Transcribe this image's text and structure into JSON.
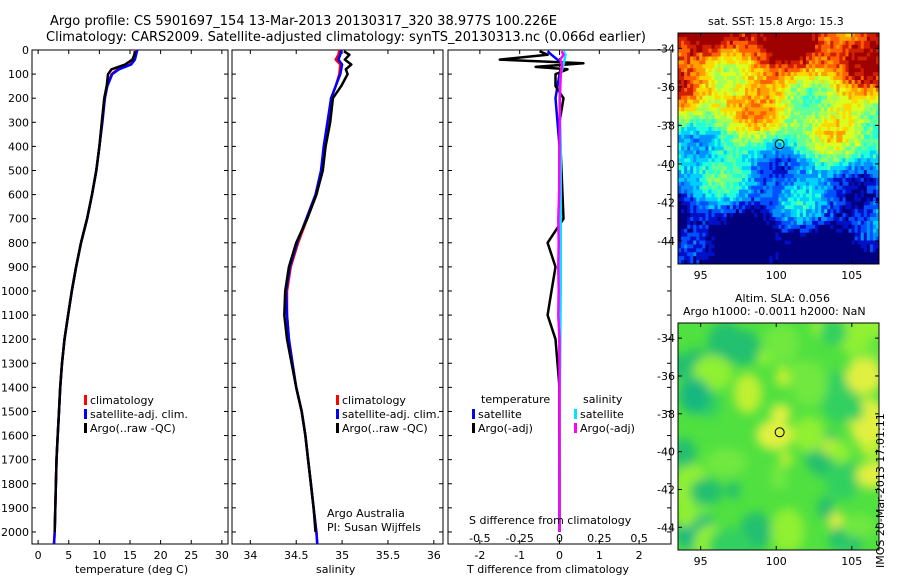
{
  "title_line1": "Argo profile: CS 5901697_154 13-Mar-2013 20130317_320 38.977S 100.226E",
  "title_line2": "Climatology: CARS2009. Satellite-adjusted climatology: synTS_20130313.nc (0.066d earlier)",
  "credit_line1": "Argo Australia",
  "credit_line2": "PI: Susan Wijffels",
  "stamp": "IMOS 20-Mar-2013 17:01:11",
  "chart_data": [
    {
      "id": "temperature",
      "type": "line",
      "xlabel": "temperature (deg C)",
      "xlim": [
        -1,
        31
      ],
      "xticks": [
        0,
        5,
        10,
        15,
        20,
        25,
        30
      ],
      "ylim": [
        0,
        2050
      ],
      "yticks": [
        0,
        100,
        200,
        300,
        400,
        500,
        600,
        700,
        800,
        900,
        1000,
        1100,
        1200,
        1300,
        1400,
        1500,
        1600,
        1700,
        1800,
        1900,
        2000
      ],
      "legend": [
        "climatology",
        "satellite-adj. clim.",
        "Argo(..raw -QC)"
      ],
      "series": [
        {
          "name": "climatology",
          "color": "#ff0000",
          "points": [
            [
              16.0,
              0
            ],
            [
              15.8,
              20
            ],
            [
              15.6,
              40
            ],
            [
              15.0,
              60
            ],
            [
              13.0,
              80
            ],
            [
              12.0,
              100
            ],
            [
              11.2,
              150
            ],
            [
              10.8,
              200
            ],
            [
              10.4,
              300
            ],
            [
              10.0,
              400
            ],
            [
              9.5,
              500
            ],
            [
              8.8,
              600
            ],
            [
              8.0,
              700
            ],
            [
              7.0,
              800
            ],
            [
              6.2,
              900
            ],
            [
              5.5,
              1000
            ],
            [
              4.9,
              1100
            ],
            [
              4.3,
              1200
            ],
            [
              3.9,
              1300
            ],
            [
              3.6,
              1400
            ],
            [
              3.4,
              1500
            ],
            [
              3.2,
              1600
            ],
            [
              3.0,
              1700
            ],
            [
              2.9,
              1800
            ],
            [
              2.8,
              1900
            ],
            [
              2.7,
              2000
            ],
            [
              2.6,
              2050
            ]
          ]
        },
        {
          "name": "satellite-adj. clim.",
          "color": "#0000ff",
          "points": [
            [
              16.2,
              0
            ],
            [
              16.0,
              20
            ],
            [
              15.8,
              40
            ],
            [
              15.2,
              60
            ],
            [
              13.2,
              80
            ],
            [
              12.1,
              100
            ],
            [
              11.3,
              150
            ],
            [
              10.9,
              200
            ],
            [
              10.5,
              300
            ],
            [
              10.0,
              400
            ],
            [
              9.5,
              500
            ],
            [
              8.8,
              600
            ],
            [
              8.0,
              700
            ],
            [
              7.0,
              800
            ],
            [
              6.2,
              900
            ],
            [
              5.5,
              1000
            ],
            [
              4.9,
              1100
            ],
            [
              4.3,
              1200
            ],
            [
              3.9,
              1300
            ],
            [
              3.6,
              1400
            ],
            [
              3.4,
              1500
            ],
            [
              3.2,
              1600
            ],
            [
              3.0,
              1700
            ],
            [
              2.9,
              1800
            ],
            [
              2.8,
              1900
            ],
            [
              2.7,
              2000
            ],
            [
              2.6,
              2050
            ]
          ]
        },
        {
          "name": "Argo(..raw -QC)",
          "color": "#000000",
          "points": [
            [
              15.8,
              5
            ],
            [
              15.7,
              20
            ],
            [
              15.4,
              40
            ],
            [
              14.2,
              60
            ],
            [
              12.0,
              80
            ],
            [
              11.4,
              100
            ],
            [
              11.2,
              150
            ],
            [
              10.8,
              200
            ],
            [
              10.4,
              300
            ],
            [
              10.0,
              400
            ],
            [
              9.5,
              500
            ],
            [
              8.8,
              600
            ],
            [
              8.0,
              700
            ],
            [
              7.0,
              800
            ],
            [
              6.2,
              900
            ],
            [
              5.5,
              1000
            ],
            [
              4.9,
              1100
            ],
            [
              4.3,
              1200
            ],
            [
              3.9,
              1300
            ],
            [
              3.6,
              1400
            ],
            [
              3.4,
              1500
            ],
            [
              3.2,
              1600
            ],
            [
              3.0,
              1700
            ],
            [
              2.9,
              1800
            ],
            [
              2.8,
              1900
            ],
            [
              2.7,
              2000
            ]
          ]
        }
      ]
    },
    {
      "id": "salinity",
      "type": "line",
      "xlabel": "salinity",
      "xlim": [
        33.8,
        36.1
      ],
      "xticks": [
        34,
        34.5,
        35,
        35.5,
        36
      ],
      "ylim": [
        0,
        2050
      ],
      "legend": [
        "climatology",
        "satellite-adj. clim.",
        "Argo(..raw -QC)"
      ],
      "series": [
        {
          "name": "climatology",
          "color": "#ff0000",
          "points": [
            [
              34.97,
              0
            ],
            [
              34.96,
              20
            ],
            [
              34.93,
              40
            ],
            [
              34.98,
              60
            ],
            [
              34.97,
              100
            ],
            [
              34.93,
              150
            ],
            [
              34.88,
              200
            ],
            [
              34.85,
              300
            ],
            [
              34.81,
              400
            ],
            [
              34.78,
              500
            ],
            [
              34.72,
              600
            ],
            [
              34.62,
              700
            ],
            [
              34.52,
              800
            ],
            [
              34.44,
              900
            ],
            [
              34.4,
              1000
            ],
            [
              34.4,
              1100
            ],
            [
              34.42,
              1200
            ],
            [
              34.46,
              1300
            ],
            [
              34.5,
              1400
            ],
            [
              34.56,
              1500
            ],
            [
              34.6,
              1600
            ],
            [
              34.63,
              1700
            ],
            [
              34.66,
              1800
            ],
            [
              34.69,
              1900
            ],
            [
              34.72,
              2000
            ],
            [
              34.73,
              2050
            ]
          ]
        },
        {
          "name": "satellite-adj. clim.",
          "color": "#0000ff",
          "points": [
            [
              34.99,
              0
            ],
            [
              34.98,
              20
            ],
            [
              34.96,
              40
            ],
            [
              35.0,
              60
            ],
            [
              34.98,
              100
            ],
            [
              34.93,
              150
            ],
            [
              34.88,
              200
            ],
            [
              34.84,
              300
            ],
            [
              34.8,
              400
            ],
            [
              34.77,
              500
            ],
            [
              34.71,
              600
            ],
            [
              34.61,
              700
            ],
            [
              34.51,
              800
            ],
            [
              34.43,
              900
            ],
            [
              34.39,
              1000
            ],
            [
              34.4,
              1100
            ],
            [
              34.42,
              1200
            ],
            [
              34.46,
              1300
            ],
            [
              34.5,
              1400
            ],
            [
              34.56,
              1500
            ],
            [
              34.6,
              1600
            ],
            [
              34.63,
              1700
            ],
            [
              34.66,
              1800
            ],
            [
              34.69,
              1900
            ],
            [
              34.72,
              2000
            ],
            [
              34.73,
              2050
            ]
          ]
        },
        {
          "name": "Argo(..raw -QC)",
          "color": "#000000",
          "points": [
            [
              35.02,
              5
            ],
            [
              35.08,
              20
            ],
            [
              35.03,
              40
            ],
            [
              35.1,
              60
            ],
            [
              35.04,
              80
            ],
            [
              35.06,
              100
            ],
            [
              34.99,
              150
            ],
            [
              34.9,
              200
            ],
            [
              34.87,
              300
            ],
            [
              34.82,
              400
            ],
            [
              34.79,
              500
            ],
            [
              34.72,
              600
            ],
            [
              34.62,
              700
            ],
            [
              34.5,
              800
            ],
            [
              34.42,
              900
            ],
            [
              34.38,
              1000
            ],
            [
              34.37,
              1100
            ],
            [
              34.4,
              1200
            ],
            [
              34.45,
              1300
            ],
            [
              34.5,
              1400
            ],
            [
              34.56,
              1500
            ],
            [
              34.6,
              1600
            ],
            [
              34.63,
              1700
            ],
            [
              34.66,
              1800
            ],
            [
              34.69,
              1900
            ],
            [
              34.71,
              2000
            ]
          ]
        }
      ]
    },
    {
      "id": "difference",
      "type": "line",
      "xlabel": "T difference from climatology",
      "xlabel_top": "S difference from climatology",
      "xlim": [
        -2.8,
        2.8
      ],
      "xticks": [
        -2,
        -1,
        0,
        1,
        2
      ],
      "xticks_s_labels": [
        "-0.5",
        "-0.25",
        "0",
        "0.25",
        "0.5"
      ],
      "ylim": [
        0,
        2050
      ],
      "legend_titles": [
        "temperature",
        "salinity"
      ],
      "legend": [
        "satellite",
        "Argo(-adj)",
        "satellite",
        "Argo(-adj)"
      ],
      "series": [
        {
          "name": "satellite",
          "group": "temperature",
          "color": "#0000ff",
          "points": [
            [
              -0.3,
              5
            ],
            [
              -0.2,
              20
            ],
            [
              0.1,
              60
            ],
            [
              0.0,
              100
            ],
            [
              -0.1,
              200
            ],
            [
              0.0,
              400
            ],
            [
              0.0,
              700
            ],
            [
              0.0,
              1000
            ],
            [
              0.0,
              1400
            ],
            [
              0.0,
              1800
            ],
            [
              0.0,
              2000
            ]
          ]
        },
        {
          "name": "Argo(-adj)",
          "group": "temperature",
          "color": "#000000",
          "points": [
            [
              -0.5,
              5
            ],
            [
              -0.3,
              20
            ],
            [
              -1.5,
              40
            ],
            [
              0.6,
              55
            ],
            [
              -0.6,
              70
            ],
            [
              0.2,
              80
            ],
            [
              -0.1,
              100
            ],
            [
              -0.1,
              150
            ],
            [
              0.1,
              200
            ],
            [
              0.0,
              300
            ],
            [
              0.05,
              500
            ],
            [
              0.1,
              700
            ],
            [
              -0.3,
              800
            ],
            [
              -0.1,
              900
            ],
            [
              -0.2,
              1000
            ],
            [
              -0.3,
              1100
            ],
            [
              -0.1,
              1200
            ],
            [
              0.0,
              1400
            ],
            [
              0.0,
              1800
            ],
            [
              0.0,
              2000
            ]
          ]
        },
        {
          "name": "satellite",
          "group": "salinity",
          "color": "#00e5ff",
          "points": [
            [
              0.1,
              5
            ],
            [
              0.15,
              20
            ],
            [
              0.1,
              60
            ],
            [
              0.03,
              100
            ],
            [
              0.0,
              200
            ],
            [
              0.03,
              400
            ],
            [
              0.03,
              700
            ],
            [
              0.03,
              1000
            ],
            [
              0.01,
              1400
            ],
            [
              0.0,
              1800
            ],
            [
              0.0,
              2000
            ]
          ]
        },
        {
          "name": "Argo(-adj)",
          "group": "salinity",
          "color": "#ff00ff",
          "points": [
            [
              0.05,
              5
            ],
            [
              0.1,
              20
            ],
            [
              0.02,
              40
            ],
            [
              0.06,
              60
            ],
            [
              0.03,
              100
            ],
            [
              0.01,
              200
            ],
            [
              0.0,
              400
            ],
            [
              -0.01,
              600
            ],
            [
              -0.03,
              700
            ],
            [
              -0.02,
              800
            ],
            [
              -0.03,
              900
            ],
            [
              -0.02,
              1000
            ],
            [
              -0.03,
              1100
            ],
            [
              0.0,
              1200
            ],
            [
              0.0,
              1400
            ],
            [
              0.0,
              1800
            ],
            [
              0.0,
              2000
            ]
          ]
        }
      ]
    },
    {
      "id": "sst_map",
      "type": "heatmap",
      "title": "sat. SST: 15.8 Argo: 15.3",
      "xticks": [
        95,
        100,
        105
      ],
      "yticks": [
        -34,
        -36,
        -38,
        -40,
        -42,
        -44
      ],
      "xlim": [
        93.5,
        106.8
      ],
      "ylim": [
        -45.2,
        -33.2
      ],
      "marker": [
        100.226,
        -38.977
      ]
    },
    {
      "id": "sla_map",
      "type": "heatmap",
      "title_line1": "Altim. SLA: 0.056",
      "title_line2": "Argo h1000: -0.0011 h2000: NaN",
      "xticks": [
        95,
        100,
        105
      ],
      "yticks": [
        -34,
        -36,
        -38,
        -40,
        -42,
        -44
      ],
      "xlim": [
        93.5,
        106.8
      ],
      "ylim": [
        -45.2,
        -33.2
      ],
      "marker": [
        100.226,
        -38.977
      ]
    }
  ]
}
